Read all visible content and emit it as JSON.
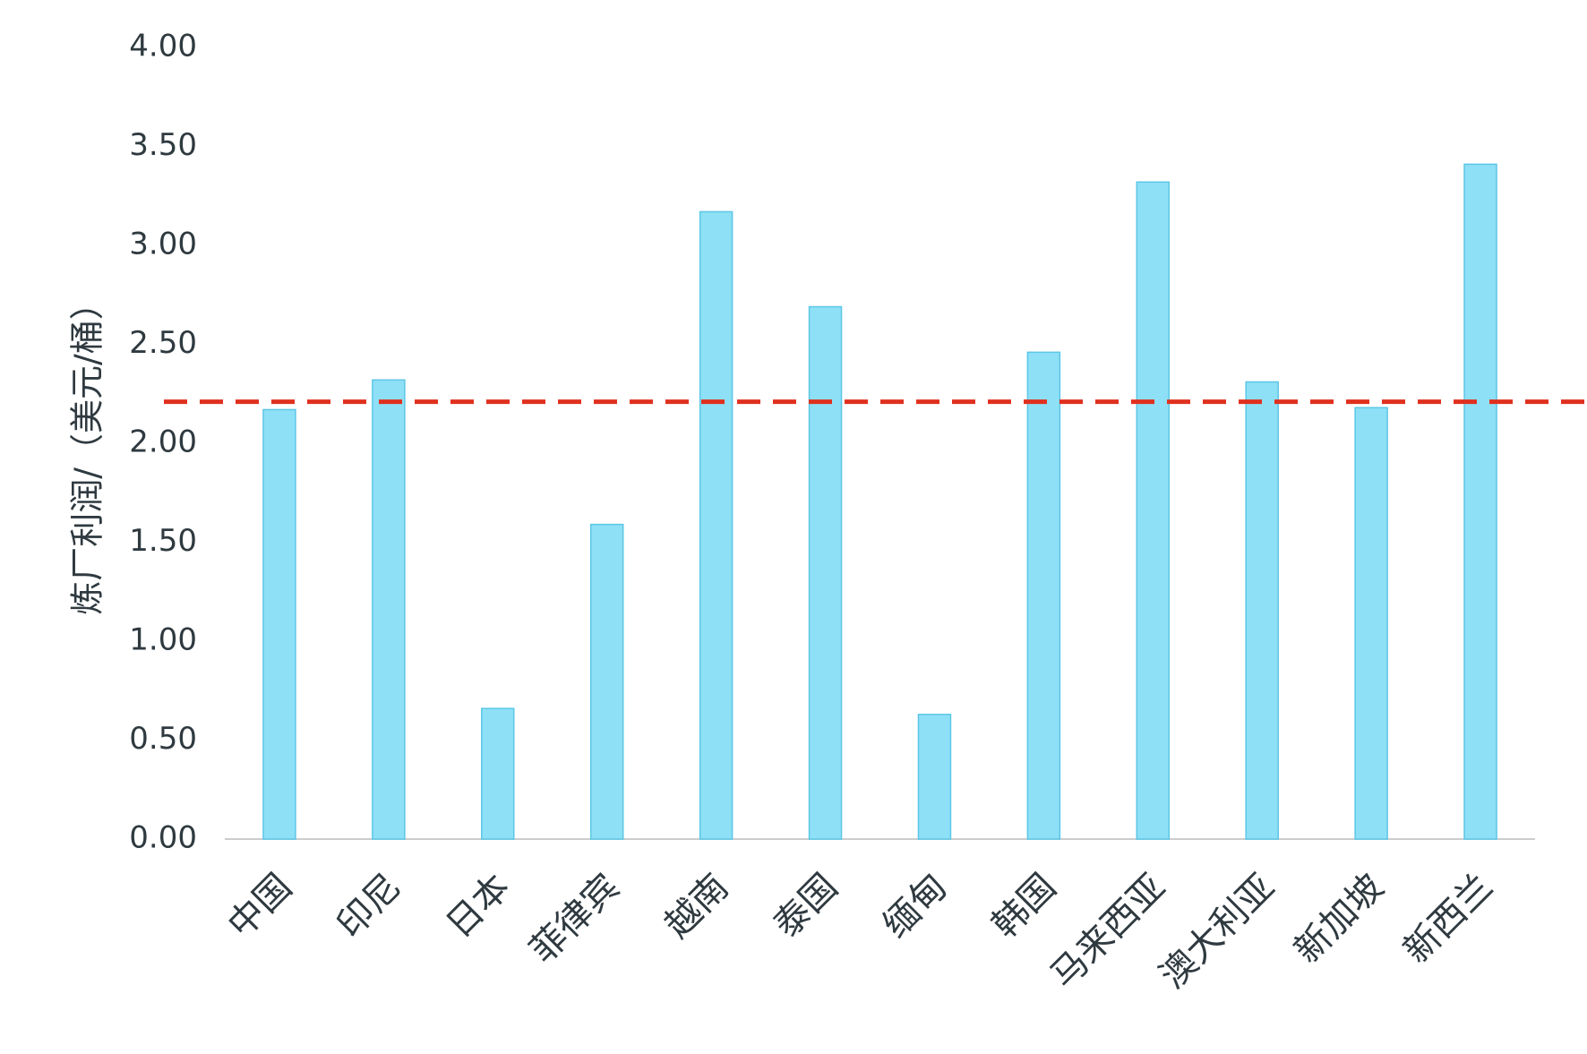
{
  "chart_data": {
    "type": "bar",
    "y_label": "炼厂利润/（美元/桶）",
    "categories": [
      "中国",
      "印尼",
      "日本",
      "菲律宾",
      "越南",
      "泰国",
      "缅甸",
      "韩国",
      "马来西亚",
      "澳大利亚",
      "新加坡",
      "新西兰"
    ],
    "values": [
      2.17,
      2.32,
      0.66,
      1.59,
      3.17,
      2.69,
      0.63,
      2.46,
      3.32,
      2.31,
      2.18,
      3.41
    ],
    "color": "#8ee0f6",
    "reference_line": 2.21,
    "reference_color": "#e0301e",
    "ylim": [
      0,
      4
    ],
    "yticks": [
      {
        "value": 0,
        "label": "0.00"
      },
      {
        "value": 0.5,
        "label": "0.50"
      },
      {
        "value": 1,
        "label": "1.00"
      },
      {
        "value": 1.5,
        "label": "1.50"
      },
      {
        "value": 2,
        "label": "2.00"
      },
      {
        "value": 2.5,
        "label": "2.50"
      },
      {
        "value": 3,
        "label": "3.00"
      },
      {
        "value": 3.5,
        "label": "3.50"
      },
      {
        "value": 4,
        "label": "4.00"
      }
    ],
    "grid": false
  }
}
